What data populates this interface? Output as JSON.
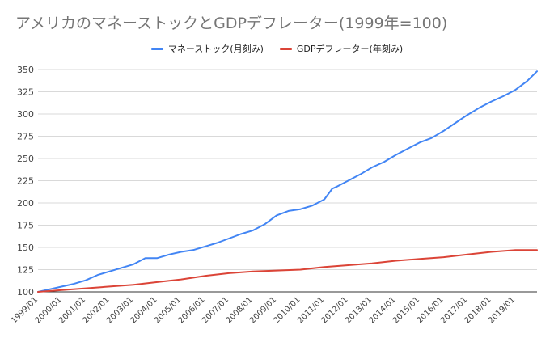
{
  "chart_data": {
    "type": "line",
    "title": "アメリカのマネーストックとGDPデフレーター(1999年=100)",
    "xlabel": "",
    "ylabel": "",
    "ylim": [
      100,
      350
    ],
    "yticks": [
      100,
      125,
      150,
      175,
      200,
      225,
      250,
      275,
      300,
      325,
      350
    ],
    "xlim": [
      "1999/01",
      "2019/12"
    ],
    "xticks": [
      "1999/01",
      "2000/01",
      "2001/01",
      "2002/01",
      "2003/01",
      "2004/01",
      "2005/01",
      "2006/01",
      "2007/01",
      "2008/01",
      "2009/01",
      "2010/01",
      "2011/01",
      "2012/01",
      "2013/01",
      "2014/01",
      "2015/01",
      "2016/01",
      "2017/01",
      "2018/01",
      "2019/01"
    ],
    "grid": true,
    "legend_position": "top-center",
    "series": [
      {
        "name": "マネーストック(月刻み)",
        "color": "#4285f4",
        "points": [
          [
            "1999/01",
            100
          ],
          [
            "1999/07",
            103
          ],
          [
            "2000/01",
            106
          ],
          [
            "2000/07",
            109
          ],
          [
            "2001/01",
            113
          ],
          [
            "2001/07",
            119
          ],
          [
            "2002/01",
            123
          ],
          [
            "2002/07",
            127
          ],
          [
            "2003/01",
            131
          ],
          [
            "2003/07",
            138
          ],
          [
            "2004/01",
            138
          ],
          [
            "2004/07",
            142
          ],
          [
            "2005/01",
            145
          ],
          [
            "2005/07",
            147
          ],
          [
            "2006/01",
            151
          ],
          [
            "2006/07",
            155
          ],
          [
            "2007/01",
            160
          ],
          [
            "2007/07",
            165
          ],
          [
            "2008/01",
            169
          ],
          [
            "2008/07",
            176
          ],
          [
            "2009/01",
            186
          ],
          [
            "2009/07",
            191
          ],
          [
            "2010/01",
            193
          ],
          [
            "2010/07",
            197
          ],
          [
            "2011/01",
            204
          ],
          [
            "2011/05",
            216
          ],
          [
            "2011/07",
            218
          ],
          [
            "2012/01",
            225
          ],
          [
            "2012/07",
            232
          ],
          [
            "2013/01",
            240
          ],
          [
            "2013/07",
            246
          ],
          [
            "2014/01",
            254
          ],
          [
            "2014/07",
            261
          ],
          [
            "2015/01",
            268
          ],
          [
            "2015/07",
            273
          ],
          [
            "2016/01",
            281
          ],
          [
            "2016/07",
            290
          ],
          [
            "2017/01",
            299
          ],
          [
            "2017/07",
            307
          ],
          [
            "2018/01",
            314
          ],
          [
            "2018/07",
            320
          ],
          [
            "2019/01",
            327
          ],
          [
            "2019/07",
            337
          ],
          [
            "2019/12",
            348
          ]
        ]
      },
      {
        "name": "GDPデフレーター(年刻み)",
        "color": "#db4437",
        "points": [
          [
            "1999/01",
            100
          ],
          [
            "2000/01",
            102
          ],
          [
            "2001/01",
            104
          ],
          [
            "2002/01",
            106
          ],
          [
            "2003/01",
            108
          ],
          [
            "2004/01",
            111
          ],
          [
            "2005/01",
            114
          ],
          [
            "2006/01",
            118
          ],
          [
            "2007/01",
            121
          ],
          [
            "2008/01",
            123
          ],
          [
            "2009/01",
            124
          ],
          [
            "2010/01",
            125
          ],
          [
            "2011/01",
            128
          ],
          [
            "2012/01",
            130
          ],
          [
            "2013/01",
            132
          ],
          [
            "2014/01",
            135
          ],
          [
            "2015/01",
            137
          ],
          [
            "2016/01",
            139
          ],
          [
            "2017/01",
            142
          ],
          [
            "2018/01",
            145
          ],
          [
            "2019/01",
            147
          ],
          [
            "2019/12",
            147
          ]
        ]
      }
    ]
  }
}
